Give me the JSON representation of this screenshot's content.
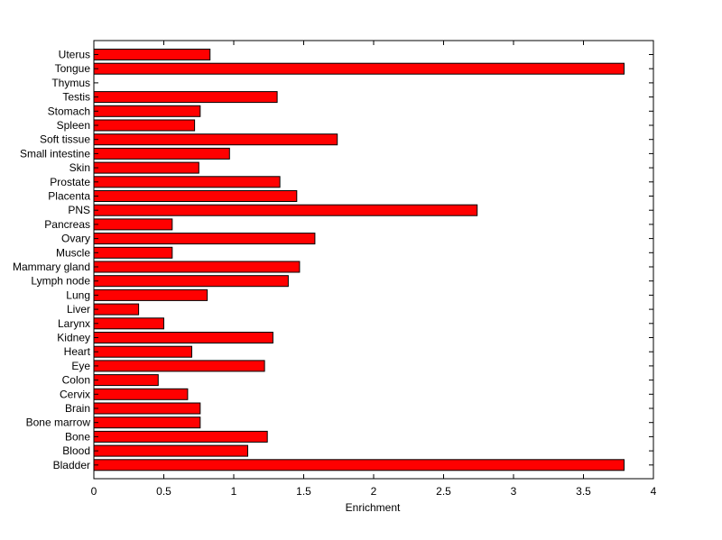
{
  "chart_data": {
    "type": "bar",
    "orientation": "horizontal",
    "title": "",
    "xlabel": "Enrichment",
    "ylabel": "",
    "xlim": [
      0,
      4
    ],
    "x_ticks": [
      "0",
      "0.5",
      "1",
      "1.5",
      "2",
      "2.5",
      "3",
      "3.5",
      "4"
    ],
    "grid": false,
    "bar_color": "#ff0000",
    "bar_edge_color": "#000000",
    "categories": [
      "Uterus",
      "Tongue",
      "Thymus",
      "Testis",
      "Stomach",
      "Spleen",
      "Soft tissue",
      "Small intestine",
      "Skin",
      "Prostate",
      "Placenta",
      "PNS",
      "Pancreas",
      "Ovary",
      "Muscle",
      "Mammary gland",
      "Lymph node",
      "Lung",
      "Liver",
      "Larynx",
      "Kidney",
      "Heart",
      "Eye",
      "Colon",
      "Cervix",
      "Brain",
      "Bone marrow",
      "Bone",
      "Blood",
      "Bladder"
    ],
    "values": [
      0.83,
      3.79,
      0,
      1.31,
      0.76,
      0.72,
      1.74,
      0.97,
      0.75,
      1.33,
      1.45,
      2.74,
      0.56,
      1.58,
      0.56,
      1.47,
      1.39,
      0.81,
      0.32,
      0.5,
      1.28,
      0.7,
      1.22,
      0.46,
      0.67,
      0.76,
      0.76,
      1.24,
      1.1,
      3.79
    ]
  }
}
